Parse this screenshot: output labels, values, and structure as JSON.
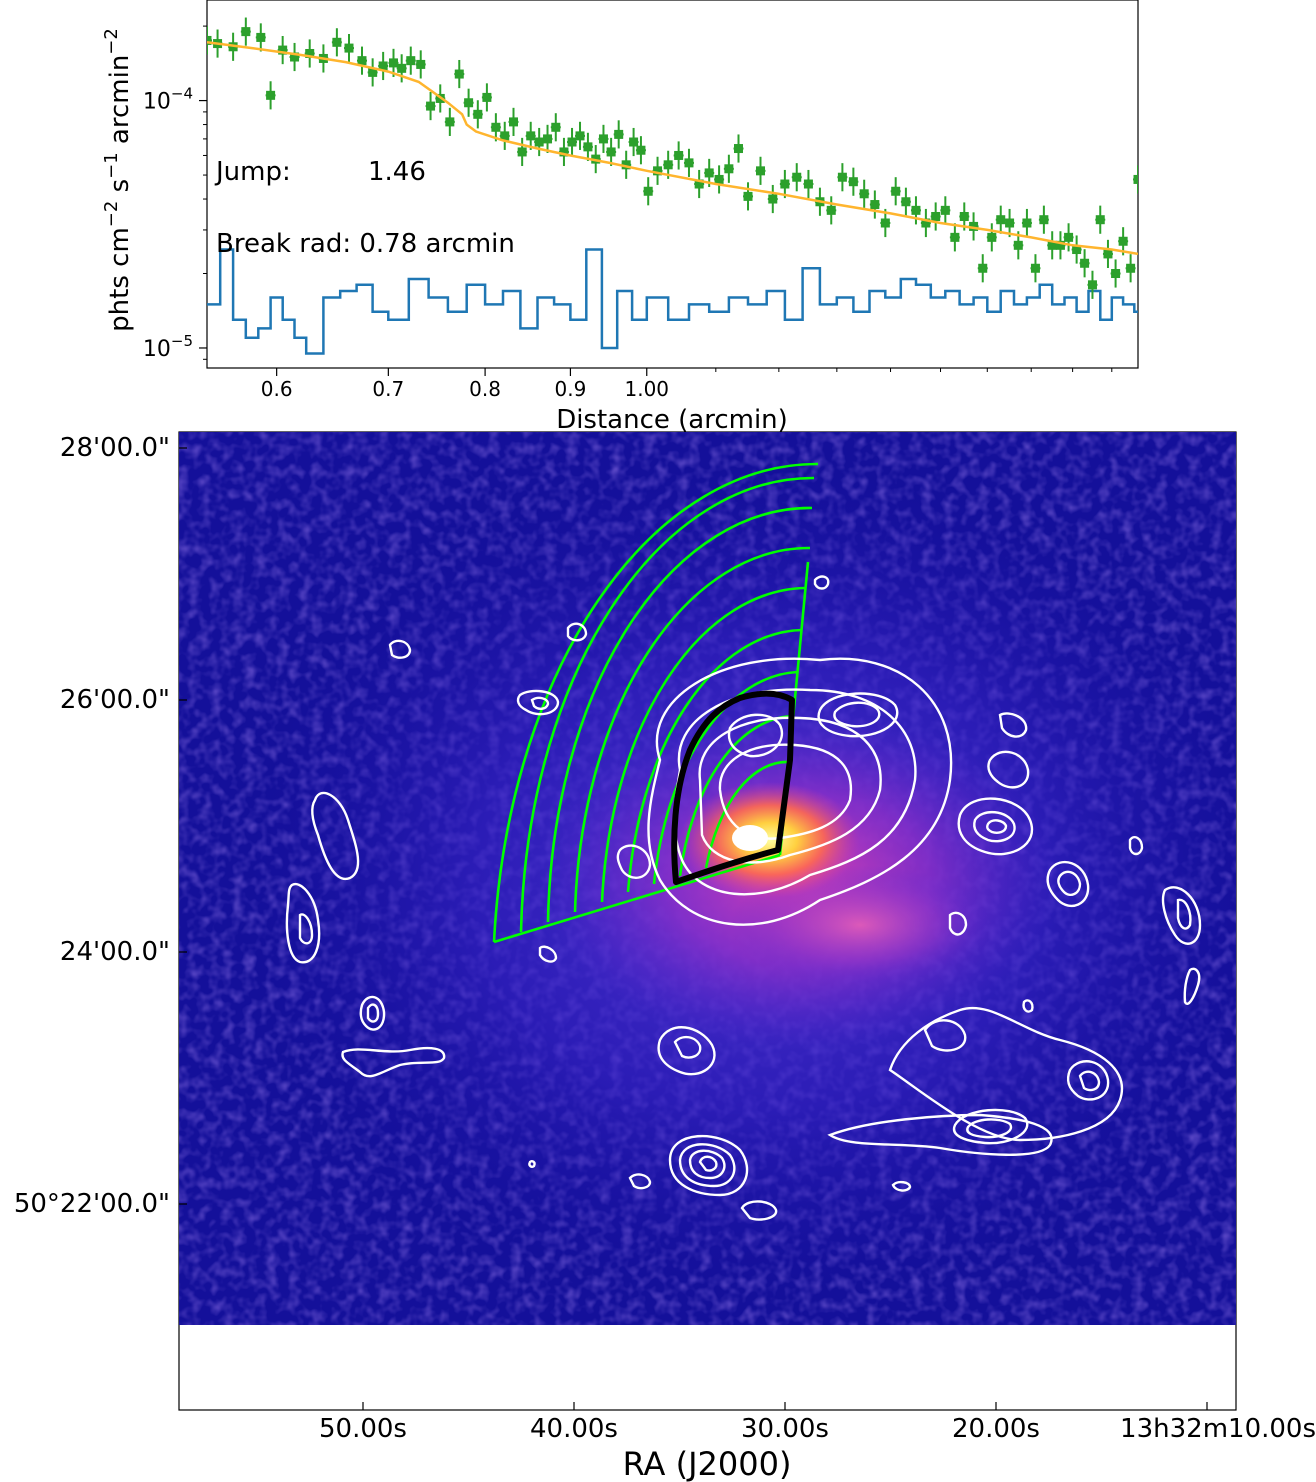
{
  "chart_data": [
    {
      "type": "scatter",
      "xscale": "log",
      "yscale": "log",
      "xlim": [
        0.545,
        1.97
      ],
      "ylim": [
        8.3e-06,
        0.000255
      ],
      "xlabel": "Distance (arcmin)",
      "ylabel_parts": [
        "phts cm",
        "−2",
        " s",
        "−1",
        " arcmin",
        "−2"
      ],
      "xticks": [
        {
          "value": 0.6,
          "label": "0.6"
        },
        {
          "value": 0.7,
          "label": "0.7"
        },
        {
          "value": 0.8,
          "label": "0.8"
        },
        {
          "value": 0.9,
          "label": "0.9"
        },
        {
          "value": 1.0,
          "label": "1.00"
        }
      ],
      "yticks": [
        {
          "value": 0.0001,
          "base": "10",
          "exp": "−4"
        },
        {
          "value": 1e-05,
          "base": "10",
          "exp": "−5"
        }
      ],
      "annotations": {
        "jump_label": "Jump:",
        "jump_value": "1.46",
        "break_label": "Break rad: 0.78 arcmin"
      },
      "colors": {
        "data": "#2ca02c",
        "model": "#ffb52e",
        "background": "#1f77b4"
      },
      "series": [
        {
          "kind": "data",
          "x": [
            0.545,
            0.553,
            0.565,
            0.575,
            0.587,
            0.595,
            0.605,
            0.615,
            0.628,
            0.64,
            0.652,
            0.663,
            0.675,
            0.685,
            0.695,
            0.705,
            0.713,
            0.722,
            0.732,
            0.742,
            0.752,
            0.762,
            0.772,
            0.782,
            0.792,
            0.802,
            0.812,
            0.822,
            0.832,
            0.842,
            0.852,
            0.862,
            0.872,
            0.882,
            0.892,
            0.902,
            0.912,
            0.922,
            0.932,
            0.942,
            0.952,
            0.962,
            0.972,
            0.982,
            0.992,
            1.002,
            1.015,
            1.03,
            1.045,
            1.06,
            1.075,
            1.09,
            1.105,
            1.12,
            1.135,
            1.15,
            1.17,
            1.19,
            1.21,
            1.23,
            1.25,
            1.27,
            1.29,
            1.31,
            1.33,
            1.35,
            1.37,
            1.39,
            1.41,
            1.43,
            1.45,
            1.47,
            1.49,
            1.51,
            1.53,
            1.55,
            1.57,
            1.59,
            1.61,
            1.63,
            1.65,
            1.67,
            1.69,
            1.71,
            1.73,
            1.75,
            1.77,
            1.79,
            1.81,
            1.83,
            1.85,
            1.87,
            1.89,
            1.91,
            1.93,
            1.95,
            1.97
          ],
          "y": [
            0.000175,
            0.00017,
            0.000165,
            0.00019,
            0.00018,
            0.000105,
            0.00016,
            0.00015,
            0.000155,
            0.000148,
            0.000172,
            0.000163,
            0.000145,
            0.00013,
            0.000138,
            0.000142,
            0.000135,
            0.000145,
            0.00014,
            9.5e-05,
            0.000102,
            8.2e-05,
            0.000128,
            9.8e-05,
            8.8e-05,
            0.000103,
            7.8e-05,
            7.2e-05,
            8.2e-05,
            6.2e-05,
            7.2e-05,
            6.8e-05,
            7e-05,
            7.8e-05,
            6.2e-05,
            6.8e-05,
            7.2e-05,
            6.5e-05,
            5.8e-05,
            7e-05,
            6.2e-05,
            7.3e-05,
            5.5e-05,
            6.8e-05,
            6.3e-05,
            4.3e-05,
            5.2e-05,
            5.5e-05,
            6e-05,
            5.6e-05,
            4.6e-05,
            5.1e-05,
            4.8e-05,
            5.3e-05,
            6.4e-05,
            4.1e-05,
            5.2e-05,
            4e-05,
            4.6e-05,
            4.9e-05,
            4.6e-05,
            3.9e-05,
            3.6e-05,
            4.9e-05,
            4.7e-05,
            4.2e-05,
            3.8e-05,
            3.2e-05,
            4.3e-05,
            3.9e-05,
            3.6e-05,
            3.2e-05,
            3.4e-05,
            3.6e-05,
            2.8e-05,
            3.4e-05,
            3.1e-05,
            2.1e-05,
            2.8e-05,
            3.3e-05,
            3.2e-05,
            2.6e-05,
            3.2e-05,
            2.1e-05,
            3.3e-05,
            2.6e-05,
            2.6e-05,
            2.8e-05,
            2.5e-05,
            2.2e-05,
            1.8e-05,
            3.3e-05,
            2.4e-05,
            2e-05,
            2.7e-05,
            2.1e-05,
            4.8e-05
          ],
          "yerr_frac": 0.14
        },
        {
          "kind": "model",
          "x": [
            0.545,
            0.58,
            0.62,
            0.66,
            0.7,
            0.73,
            0.76,
            0.775,
            0.78,
            0.79,
            0.82,
            0.86,
            0.9,
            0.95,
            1.0,
            1.1,
            1.2,
            1.3,
            1.4,
            1.5,
            1.6,
            1.7,
            1.8,
            1.9,
            1.97
          ],
          "y": [
            0.000172,
            0.000163,
            0.000153,
            0.000143,
            0.000131,
            0.000119,
            9.8e-05,
            8.8e-05,
            8e-05,
            7.5e-05,
            6.9e-05,
            6.4e-05,
            6e-05,
            5.6e-05,
            5.2e-05,
            4.6e-05,
            4.2e-05,
            3.8e-05,
            3.5e-05,
            3.2e-05,
            3e-05,
            2.8e-05,
            2.6e-05,
            2.5e-05,
            2.4e-05
          ]
        },
        {
          "kind": "background",
          "x": [
            0.545,
            0.555,
            0.565,
            0.575,
            0.585,
            0.595,
            0.605,
            0.615,
            0.625,
            0.64,
            0.655,
            0.67,
            0.685,
            0.7,
            0.72,
            0.74,
            0.76,
            0.78,
            0.8,
            0.82,
            0.84,
            0.86,
            0.88,
            0.9,
            0.92,
            0.94,
            0.96,
            0.98,
            1.0,
            1.03,
            1.06,
            1.09,
            1.12,
            1.15,
            1.18,
            1.21,
            1.24,
            1.27,
            1.3,
            1.33,
            1.36,
            1.39,
            1.42,
            1.45,
            1.48,
            1.51,
            1.54,
            1.57,
            1.6,
            1.63,
            1.66,
            1.69,
            1.72,
            1.75,
            1.78,
            1.81,
            1.84,
            1.87,
            1.9,
            1.93,
            1.96
          ],
          "y": [
            1.5e-05,
            2.5e-05,
            1.3e-05,
            1.1e-05,
            1.2e-05,
            1.6e-05,
            1.3e-05,
            1.1e-05,
            9.5e-06,
            1.6e-05,
            1.7e-05,
            1.8e-05,
            1.4e-05,
            1.3e-05,
            1.9e-05,
            1.6e-05,
            1.4e-05,
            1.8e-05,
            1.5e-05,
            1.7e-05,
            1.2e-05,
            1.6e-05,
            1.5e-05,
            1.3e-05,
            2.5e-05,
            1e-05,
            1.7e-05,
            1.3e-05,
            1.6e-05,
            1.3e-05,
            1.5e-05,
            1.4e-05,
            1.6e-05,
            1.5e-05,
            1.7e-05,
            1.3e-05,
            2.1e-05,
            1.5e-05,
            1.6e-05,
            1.4e-05,
            1.7e-05,
            1.6e-05,
            1.9e-05,
            1.8e-05,
            1.6e-05,
            1.7e-05,
            1.5e-05,
            1.6e-05,
            1.4e-05,
            1.7e-05,
            1.5e-05,
            1.6e-05,
            1.8e-05,
            1.5e-05,
            1.6e-05,
            1.4e-05,
            1.7e-05,
            1.3e-05,
            1.6e-05,
            1.5e-05,
            1.4e-05
          ]
        }
      ]
    },
    {
      "type": "heatmap",
      "xlabel": "RA (J2000)",
      "xticks": [
        "50.00s",
        "40.00s",
        "30.00s",
        "20.00s",
        "13h32m10.00s"
      ],
      "xtick_ra_seconds": [
        50,
        40,
        30,
        20,
        10
      ],
      "yticks": [
        "28'00.0\"",
        "26'00.0\"",
        "24'00.0\"",
        "50°22'00.0\""
      ],
      "ytick_dec_arcmin": [
        28,
        26,
        24,
        22
      ],
      "colormap": "gnuplot2",
      "colors": {
        "sector": "#00ff00",
        "contour": "#ffffff",
        "front": "#000000"
      }
    }
  ]
}
